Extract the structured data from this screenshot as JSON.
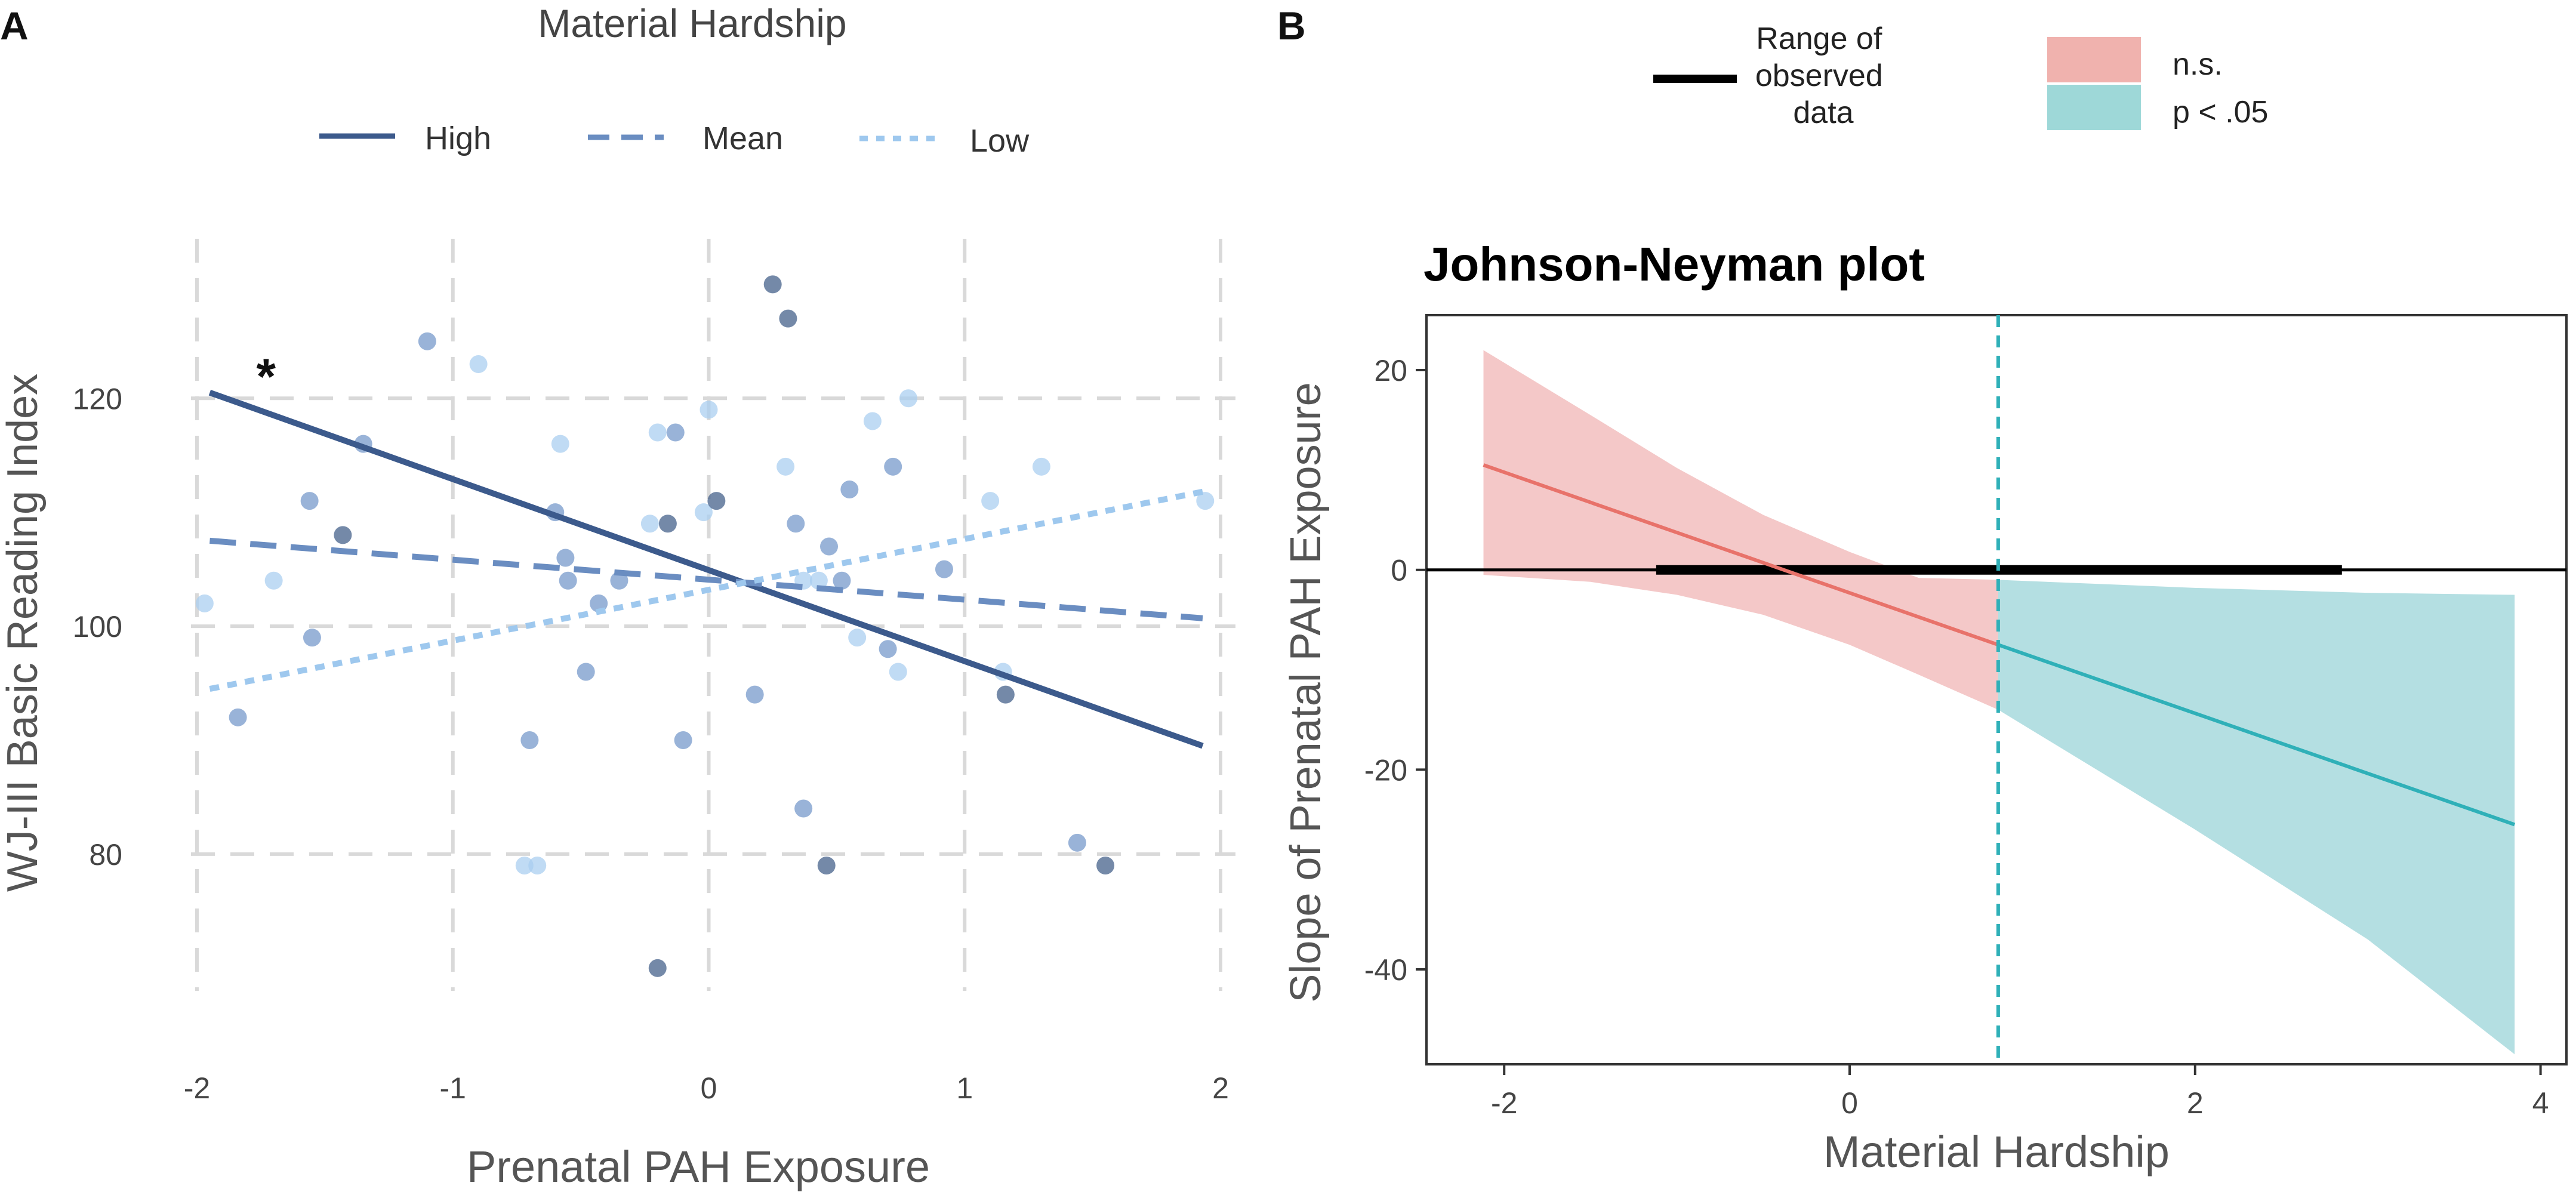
{
  "chart_data": [
    {
      "panel": "A",
      "type": "scatter",
      "legend_title": "Material Hardship",
      "xlabel": "Prenatal PAH Exposure",
      "ylabel": "WJ-III Basic Reading Index",
      "xlim": [
        -2,
        2
      ],
      "ylim": [
        68,
        134
      ],
      "xticks": [
        -2,
        -1,
        0,
        1,
        2
      ],
      "yticks": [
        80,
        100,
        120
      ],
      "xtick_labels": [
        "-2",
        "-1",
        "0",
        "1",
        "2"
      ],
      "ytick_labels": [
        "80",
        "100",
        "120"
      ],
      "legend": "top",
      "annotation": "*",
      "annotation_pos": {
        "x": -1.73,
        "y": 122.5
      },
      "series": [
        {
          "name": "High",
          "style": "solid",
          "color": "#3c5a8c",
          "x": [
            -1.95,
            1.93
          ],
          "y": [
            120.5,
            89.5
          ]
        },
        {
          "name": "Mean",
          "style": "dashed",
          "color": "#6a8dc1",
          "x": [
            -1.95,
            1.93
          ],
          "y": [
            107.5,
            100.7
          ]
        },
        {
          "name": "Low",
          "style": "dotted",
          "color": "#9ec8ee",
          "x": [
            -1.95,
            1.93
          ],
          "y": [
            94.5,
            111.8
          ]
        }
      ],
      "points": [
        {
          "x": -1.97,
          "y": 102,
          "g": "Low"
        },
        {
          "x": -1.84,
          "y": 92,
          "g": "Mean"
        },
        {
          "x": -1.7,
          "y": 104,
          "g": "Low"
        },
        {
          "x": -1.56,
          "y": 111,
          "g": "Mean"
        },
        {
          "x": -1.55,
          "y": 99,
          "g": "Mean"
        },
        {
          "x": -1.43,
          "y": 108,
          "g": "High"
        },
        {
          "x": -1.35,
          "y": 116,
          "g": "Mean"
        },
        {
          "x": -1.1,
          "y": 125,
          "g": "Mean"
        },
        {
          "x": -0.9,
          "y": 123,
          "g": "Low"
        },
        {
          "x": -0.7,
          "y": 90,
          "g": "Mean"
        },
        {
          "x": -0.72,
          "y": 79,
          "g": "Low"
        },
        {
          "x": -0.67,
          "y": 79,
          "g": "Low"
        },
        {
          "x": -0.6,
          "y": 110,
          "g": "Mean"
        },
        {
          "x": -0.58,
          "y": 116,
          "g": "Low"
        },
        {
          "x": -0.56,
          "y": 106,
          "g": "Mean"
        },
        {
          "x": -0.55,
          "y": 104,
          "g": "Mean"
        },
        {
          "x": -0.48,
          "y": 96,
          "g": "Mean"
        },
        {
          "x": -0.43,
          "y": 102,
          "g": "Mean"
        },
        {
          "x": -0.35,
          "y": 104,
          "g": "Mean"
        },
        {
          "x": -0.23,
          "y": 109,
          "g": "Low"
        },
        {
          "x": -0.2,
          "y": 117,
          "g": "Low"
        },
        {
          "x": -0.16,
          "y": 109,
          "g": "High"
        },
        {
          "x": -0.13,
          "y": 117,
          "g": "Mean"
        },
        {
          "x": -0.1,
          "y": 90,
          "g": "Mean"
        },
        {
          "x": -0.2,
          "y": 70,
          "g": "High"
        },
        {
          "x": -0.02,
          "y": 110,
          "g": "Low"
        },
        {
          "x": 0.0,
          "y": 119,
          "g": "Low"
        },
        {
          "x": 0.03,
          "y": 111,
          "g": "High"
        },
        {
          "x": 0.18,
          "y": 94,
          "g": "Mean"
        },
        {
          "x": 0.25,
          "y": 130,
          "g": "High"
        },
        {
          "x": 0.31,
          "y": 127,
          "g": "High"
        },
        {
          "x": 0.3,
          "y": 114,
          "g": "Low"
        },
        {
          "x": 0.34,
          "y": 109,
          "g": "Mean"
        },
        {
          "x": 0.37,
          "y": 104,
          "g": "Low"
        },
        {
          "x": 0.37,
          "y": 84,
          "g": "Mean"
        },
        {
          "x": 0.43,
          "y": 104,
          "g": "Low"
        },
        {
          "x": 0.46,
          "y": 79,
          "g": "High"
        },
        {
          "x": 0.47,
          "y": 107,
          "g": "Mean"
        },
        {
          "x": 0.52,
          "y": 104,
          "g": "Mean"
        },
        {
          "x": 0.55,
          "y": 112,
          "g": "Mean"
        },
        {
          "x": 0.58,
          "y": 99,
          "g": "Low"
        },
        {
          "x": 0.64,
          "y": 118,
          "g": "Low"
        },
        {
          "x": 0.7,
          "y": 98,
          "g": "Mean"
        },
        {
          "x": 0.72,
          "y": 114,
          "g": "Mean"
        },
        {
          "x": 0.74,
          "y": 96,
          "g": "Low"
        },
        {
          "x": 0.78,
          "y": 120,
          "g": "Low"
        },
        {
          "x": 0.92,
          "y": 105,
          "g": "Mean"
        },
        {
          "x": 1.1,
          "y": 111,
          "g": "Low"
        },
        {
          "x": 1.15,
          "y": 96,
          "g": "Low"
        },
        {
          "x": 1.16,
          "y": 94,
          "g": "High"
        },
        {
          "x": 1.3,
          "y": 114,
          "g": "Low"
        },
        {
          "x": 1.44,
          "y": 81,
          "g": "Mean"
        },
        {
          "x": 1.55,
          "y": 79,
          "g": "High"
        },
        {
          "x": 1.94,
          "y": 111,
          "g": "Low"
        }
      ],
      "labels": {
        "High": "High",
        "Mean": "Mean",
        "Low": "Low"
      }
    },
    {
      "panel": "B",
      "type": "line",
      "title": "Johnson-Neyman plot",
      "xlabel": "Material Hardship",
      "ylabel": "Slope of Prenatal PAH Exposure",
      "xlim": [
        -2.45,
        4.15
      ],
      "ylim": [
        -49.5,
        25.5
      ],
      "xticks": [
        -2,
        0,
        2,
        4
      ],
      "yticks": [
        -40,
        -20,
        0,
        20
      ],
      "xtick_labels": [
        "-2",
        "0",
        "2",
        "4"
      ],
      "ytick_labels": [
        "-40",
        "-20",
        "0",
        "20"
      ],
      "grid": false,
      "legend": "top",
      "jn_point": 0.86,
      "range_observed": [
        -1.12,
        2.85
      ],
      "slope_line": {
        "x": [
          -2.12,
          0.86,
          3.85
        ],
        "y": [
          10.5,
          -7.5,
          -25.5
        ]
      },
      "ci_upper": {
        "x": [
          -2.12,
          -1.5,
          -1.0,
          -0.5,
          0.0,
          0.4,
          0.86
        ],
        "y": [
          22.0,
          15.5,
          10.2,
          5.5,
          1.8,
          -0.8,
          -1.0
        ]
      },
      "ci_lower": {
        "x": [
          -2.12,
          -1.5,
          -1.0,
          -0.5,
          0.0,
          0.4,
          0.86
        ],
        "y": [
          -0.5,
          -1.2,
          -2.5,
          -4.5,
          -7.5,
          -10.5,
          -14.0
        ]
      },
      "ci_sig_upper": {
        "x": [
          0.86,
          2.0,
          3.0,
          3.85
        ],
        "y": [
          -1.0,
          -1.8,
          -2.3,
          -2.5
        ]
      },
      "ci_sig_lower": {
        "x": [
          0.86,
          2.0,
          3.0,
          3.85
        ],
        "y": [
          -14.0,
          -26.0,
          -37.0,
          -48.5
        ]
      },
      "legend_items": {
        "range": "Range of observed data",
        "ns": "n.s.",
        "sig": "p < .05"
      },
      "colors": {
        "ns": "#e8726a",
        "sig": "#2fb0b8",
        "ns_fill": "#f4c8c8",
        "sig_fill": "#b4dfe2"
      }
    }
  ],
  "panel_labels": [
    "A",
    "B"
  ]
}
